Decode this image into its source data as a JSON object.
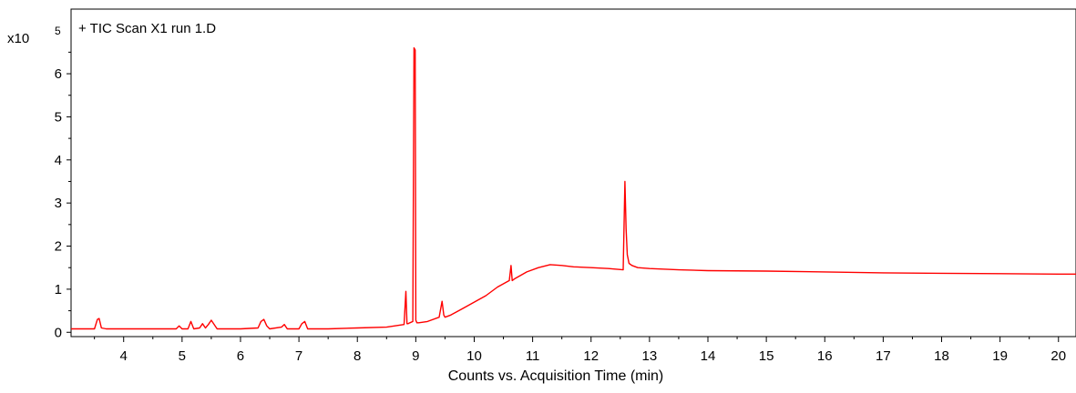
{
  "chart_data": {
    "type": "line",
    "title": "+ TIC Scan X1 run 1.D",
    "xlabel": "Counts vs. Acquisition Time (min)",
    "ylabel": "",
    "y_scale_multiplier": {
      "base": "x10",
      "exponent": "5"
    },
    "xlim": [
      3.1,
      20.3
    ],
    "ylim": [
      -0.1,
      7.5
    ],
    "x_ticks": [
      4,
      5,
      6,
      7,
      8,
      9,
      10,
      11,
      12,
      13,
      14,
      15,
      16,
      17,
      18,
      19,
      20
    ],
    "y_ticks": [
      0,
      1,
      2,
      3,
      4,
      5,
      6
    ],
    "grid": false,
    "legend": "none",
    "line_color": "#ff0000",
    "series": [
      {
        "color": "#ff0000",
        "x": [
          3.1,
          3.5,
          3.55,
          3.58,
          3.62,
          3.7,
          4.0,
          4.5,
          4.9,
          4.95,
          5.0,
          5.1,
          5.15,
          5.2,
          5.3,
          5.35,
          5.4,
          5.45,
          5.5,
          5.6,
          5.8,
          6.0,
          6.3,
          6.35,
          6.4,
          6.45,
          6.5,
          6.7,
          6.75,
          6.8,
          7.0,
          7.05,
          7.1,
          7.15,
          7.5,
          8.0,
          8.5,
          8.8,
          8.83,
          8.85,
          8.87,
          8.9,
          8.95,
          8.97,
          8.99,
          9.0,
          9.02,
          9.05,
          9.2,
          9.4,
          9.45,
          9.48,
          9.5,
          9.6,
          9.8,
          10.0,
          10.2,
          10.4,
          10.6,
          10.63,
          10.65,
          10.7,
          10.9,
          11.1,
          11.3,
          11.5,
          11.7,
          12.0,
          12.3,
          12.55,
          12.58,
          12.6,
          12.62,
          12.65,
          12.7,
          12.8,
          13.0,
          13.5,
          14.0,
          15.0,
          16.0,
          17.0,
          18.0,
          19.0,
          20.0,
          20.3
        ],
        "y": [
          0.08,
          0.08,
          0.3,
          0.32,
          0.1,
          0.08,
          0.08,
          0.08,
          0.08,
          0.15,
          0.08,
          0.08,
          0.25,
          0.08,
          0.1,
          0.2,
          0.1,
          0.18,
          0.28,
          0.08,
          0.08,
          0.08,
          0.1,
          0.25,
          0.3,
          0.15,
          0.08,
          0.12,
          0.18,
          0.08,
          0.08,
          0.2,
          0.25,
          0.08,
          0.08,
          0.1,
          0.12,
          0.18,
          0.95,
          0.2,
          0.2,
          0.22,
          0.25,
          6.6,
          6.55,
          0.28,
          0.22,
          0.22,
          0.25,
          0.35,
          0.72,
          0.4,
          0.35,
          0.4,
          0.55,
          0.7,
          0.85,
          1.05,
          1.2,
          1.55,
          1.2,
          1.25,
          1.4,
          1.5,
          1.57,
          1.55,
          1.52,
          1.5,
          1.48,
          1.45,
          3.5,
          2.4,
          1.8,
          1.6,
          1.55,
          1.5,
          1.48,
          1.45,
          1.43,
          1.42,
          1.4,
          1.38,
          1.37,
          1.36,
          1.35,
          1.35
        ]
      }
    ]
  }
}
